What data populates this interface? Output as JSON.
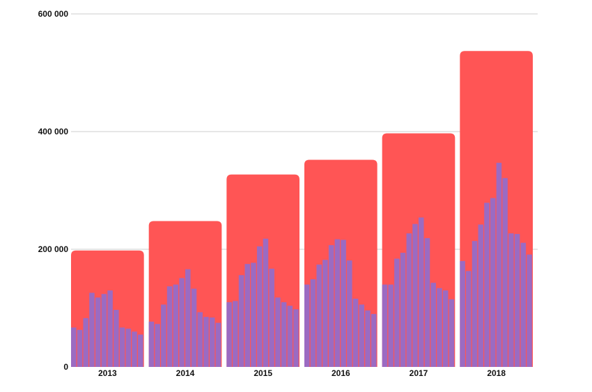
{
  "chart_data": {
    "type": "bar",
    "title": "",
    "xlabel": "",
    "ylabel": "",
    "ylim": [
      0,
      600000
    ],
    "yticks": [
      0,
      200000,
      400000,
      600000
    ],
    "ytick_labels": [
      "0",
      "200 000",
      "400 000",
      "600 000"
    ],
    "grid": true,
    "categories": [
      "2013",
      "2014",
      "2015",
      "2016",
      "2017",
      "2018"
    ],
    "series": [
      {
        "kind": "yearly",
        "color": "#ff5555",
        "values": [
          198000,
          248000,
          327000,
          352000,
          397000,
          537000
        ]
      },
      {
        "kind": "monthly",
        "color": "#9b6bc2",
        "values": [
          [
            67000,
            63000,
            83000,
            126000,
            118000,
            124000,
            130000,
            97000,
            67000,
            65000,
            60000,
            55000
          ],
          [
            77000,
            73000,
            106000,
            137000,
            140000,
            151000,
            166000,
            133000,
            93000,
            85000,
            84000,
            75000
          ],
          [
            110000,
            112000,
            156000,
            175000,
            177000,
            205000,
            218000,
            167000,
            118000,
            110000,
            104000,
            98000
          ],
          [
            140000,
            149000,
            174000,
            182000,
            207000,
            217000,
            216000,
            181000,
            116000,
            106000,
            96000,
            90000
          ],
          [
            140000,
            140000,
            184000,
            194000,
            227000,
            243000,
            254000,
            219000,
            143000,
            134000,
            130000,
            115000
          ],
          [
            180000,
            163000,
            214000,
            242000,
            279000,
            287000,
            347000,
            321000,
            227000,
            226000,
            211000,
            191000
          ]
        ]
      }
    ]
  }
}
